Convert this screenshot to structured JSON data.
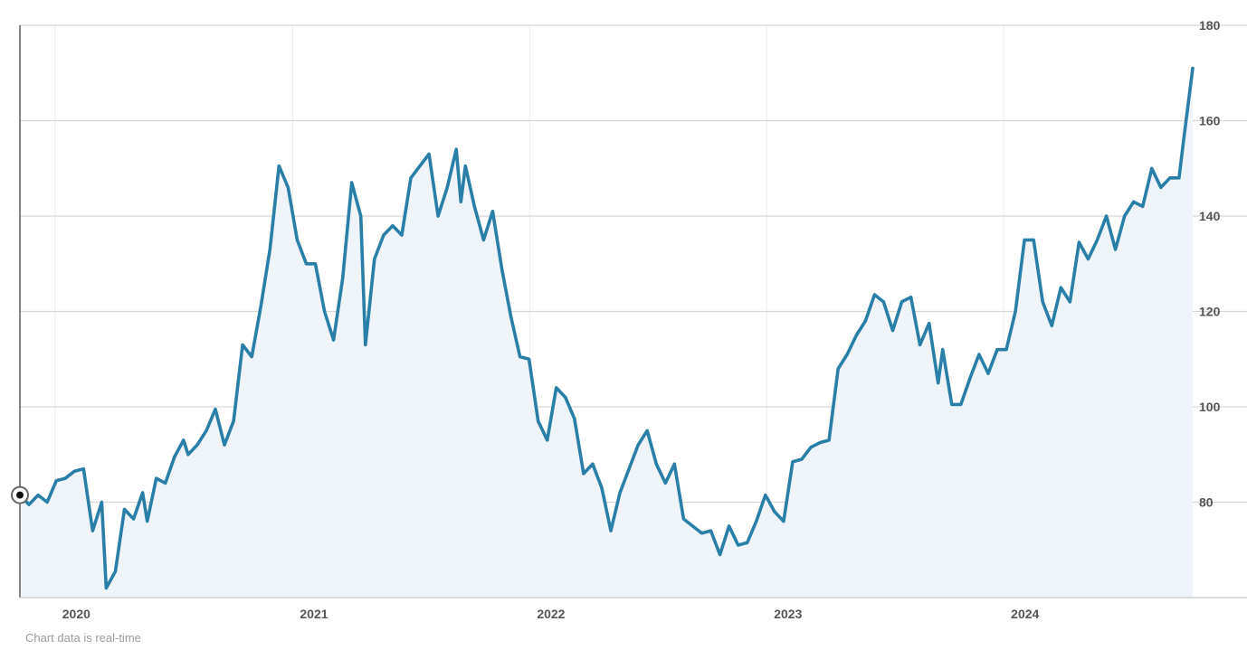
{
  "footer": {
    "note": "Chart data is real-time"
  },
  "colors": {
    "line": "#2a7fa8",
    "fill": "#eef4f9",
    "grid": "#d6d6d6",
    "axis": "#555555"
  },
  "chart_data": {
    "type": "area",
    "title": "",
    "xlabel": "",
    "ylabel": "",
    "y_ticks": [
      "80",
      "100",
      "120",
      "140",
      "160",
      "180"
    ],
    "x_ticks": [
      {
        "label": "2020",
        "at": "2020-01-01"
      },
      {
        "label": "2021",
        "at": "2021-01-01"
      },
      {
        "label": "2022",
        "at": "2022-01-01"
      },
      {
        "label": "2023",
        "at": "2023-01-01"
      },
      {
        "label": "2024",
        "at": "2024-01-01"
      }
    ],
    "ylim": [
      60,
      180
    ],
    "xlim": [
      "2019-11-08",
      "2024-10-18"
    ],
    "grid": true,
    "legend": "none",
    "series": [
      {
        "points": [
          [
            "2019-11-08",
            81.5
          ],
          [
            "2019-11-22",
            79.5
          ],
          [
            "2019-12-06",
            81.5
          ],
          [
            "2019-12-20",
            80
          ],
          [
            "2020-01-03",
            84.5
          ],
          [
            "2020-01-17",
            85
          ],
          [
            "2020-01-31",
            86.5
          ],
          [
            "2020-02-14",
            87
          ],
          [
            "2020-02-28",
            74
          ],
          [
            "2020-03-13",
            80
          ],
          [
            "2020-03-20",
            62
          ],
          [
            "2020-04-03",
            65.5
          ],
          [
            "2020-04-17",
            78.5
          ],
          [
            "2020-05-01",
            76.5
          ],
          [
            "2020-05-15",
            82
          ],
          [
            "2020-05-22",
            76
          ],
          [
            "2020-06-05",
            85
          ],
          [
            "2020-06-19",
            84
          ],
          [
            "2020-07-03",
            89.5
          ],
          [
            "2020-07-17",
            93
          ],
          [
            "2020-07-24",
            90
          ],
          [
            "2020-08-07",
            92
          ],
          [
            "2020-08-21",
            95
          ],
          [
            "2020-09-04",
            99.5
          ],
          [
            "2020-09-18",
            92
          ],
          [
            "2020-10-02",
            97
          ],
          [
            "2020-10-16",
            113
          ],
          [
            "2020-10-30",
            110.5
          ],
          [
            "2020-11-13",
            121
          ],
          [
            "2020-11-27",
            133
          ],
          [
            "2020-12-11",
            150.5
          ],
          [
            "2020-12-25",
            146
          ],
          [
            "2021-01-08",
            135
          ],
          [
            "2021-01-22",
            130
          ],
          [
            "2021-02-05",
            130
          ],
          [
            "2021-02-19",
            120
          ],
          [
            "2021-03-05",
            114
          ],
          [
            "2021-03-19",
            127
          ],
          [
            "2021-04-02",
            147
          ],
          [
            "2021-04-16",
            140
          ],
          [
            "2021-04-23",
            113
          ],
          [
            "2021-05-07",
            131
          ],
          [
            "2021-05-21",
            136
          ],
          [
            "2021-06-04",
            138
          ],
          [
            "2021-06-18",
            136
          ],
          [
            "2021-07-02",
            148
          ],
          [
            "2021-07-16",
            150.5
          ],
          [
            "2021-07-30",
            153
          ],
          [
            "2021-08-13",
            140
          ],
          [
            "2021-08-27",
            146
          ],
          [
            "2021-09-10",
            154
          ],
          [
            "2021-09-17",
            143
          ],
          [
            "2021-09-24",
            150.5
          ],
          [
            "2021-10-08",
            142
          ],
          [
            "2021-10-22",
            135
          ],
          [
            "2021-11-05",
            141
          ],
          [
            "2021-11-19",
            129
          ],
          [
            "2021-12-03",
            119
          ],
          [
            "2021-12-17",
            110.5
          ],
          [
            "2021-12-31",
            110
          ],
          [
            "2022-01-14",
            97
          ],
          [
            "2022-01-28",
            93
          ],
          [
            "2022-02-11",
            104
          ],
          [
            "2022-02-25",
            102
          ],
          [
            "2022-03-11",
            97.5
          ],
          [
            "2022-03-25",
            86
          ],
          [
            "2022-04-08",
            88
          ],
          [
            "2022-04-22",
            83
          ],
          [
            "2022-05-06",
            74
          ],
          [
            "2022-05-20",
            82
          ],
          [
            "2022-06-03",
            87
          ],
          [
            "2022-06-17",
            92
          ],
          [
            "2022-07-01",
            95
          ],
          [
            "2022-07-15",
            88
          ],
          [
            "2022-07-29",
            84
          ],
          [
            "2022-08-12",
            88
          ],
          [
            "2022-08-26",
            76.5
          ],
          [
            "2022-09-09",
            75
          ],
          [
            "2022-09-23",
            73.5
          ],
          [
            "2022-10-07",
            74
          ],
          [
            "2022-10-21",
            69
          ],
          [
            "2022-11-04",
            75
          ],
          [
            "2022-11-18",
            71
          ],
          [
            "2022-12-02",
            71.5
          ],
          [
            "2022-12-16",
            76
          ],
          [
            "2022-12-30",
            81.5
          ],
          [
            "2023-01-13",
            78
          ],
          [
            "2023-01-27",
            76
          ],
          [
            "2023-02-10",
            88.5
          ],
          [
            "2023-02-24",
            89
          ],
          [
            "2023-03-10",
            91.5
          ],
          [
            "2023-03-24",
            92.5
          ],
          [
            "2023-04-07",
            93
          ],
          [
            "2023-04-21",
            108
          ],
          [
            "2023-05-05",
            111
          ],
          [
            "2023-05-19",
            115
          ],
          [
            "2023-06-02",
            118
          ],
          [
            "2023-06-16",
            123.5
          ],
          [
            "2023-06-30",
            122
          ],
          [
            "2023-07-14",
            116
          ],
          [
            "2023-07-28",
            122
          ],
          [
            "2023-08-11",
            123
          ],
          [
            "2023-08-25",
            113
          ],
          [
            "2023-09-08",
            117.5
          ],
          [
            "2023-09-22",
            105
          ],
          [
            "2023-09-29",
            112
          ],
          [
            "2023-10-13",
            100.5
          ],
          [
            "2023-10-27",
            100.5
          ],
          [
            "2023-11-10",
            106
          ],
          [
            "2023-11-24",
            111
          ],
          [
            "2023-12-08",
            107
          ],
          [
            "2023-12-22",
            112
          ],
          [
            "2024-01-05",
            112
          ],
          [
            "2024-01-19",
            120
          ],
          [
            "2024-02-02",
            135
          ],
          [
            "2024-02-16",
            135
          ],
          [
            "2024-03-01",
            122
          ],
          [
            "2024-03-15",
            117
          ],
          [
            "2024-03-29",
            125
          ],
          [
            "2024-04-12",
            122
          ],
          [
            "2024-04-26",
            134.5
          ],
          [
            "2024-05-10",
            131
          ],
          [
            "2024-05-24",
            135
          ],
          [
            "2024-06-07",
            140
          ],
          [
            "2024-06-21",
            133
          ],
          [
            "2024-07-05",
            140
          ],
          [
            "2024-07-19",
            143
          ],
          [
            "2024-08-02",
            142
          ],
          [
            "2024-08-16",
            150
          ],
          [
            "2024-08-30",
            146
          ],
          [
            "2024-09-13",
            148
          ],
          [
            "2024-09-27",
            148
          ],
          [
            "2024-10-04",
            156
          ],
          [
            "2024-10-18",
            171
          ]
        ]
      }
    ]
  }
}
